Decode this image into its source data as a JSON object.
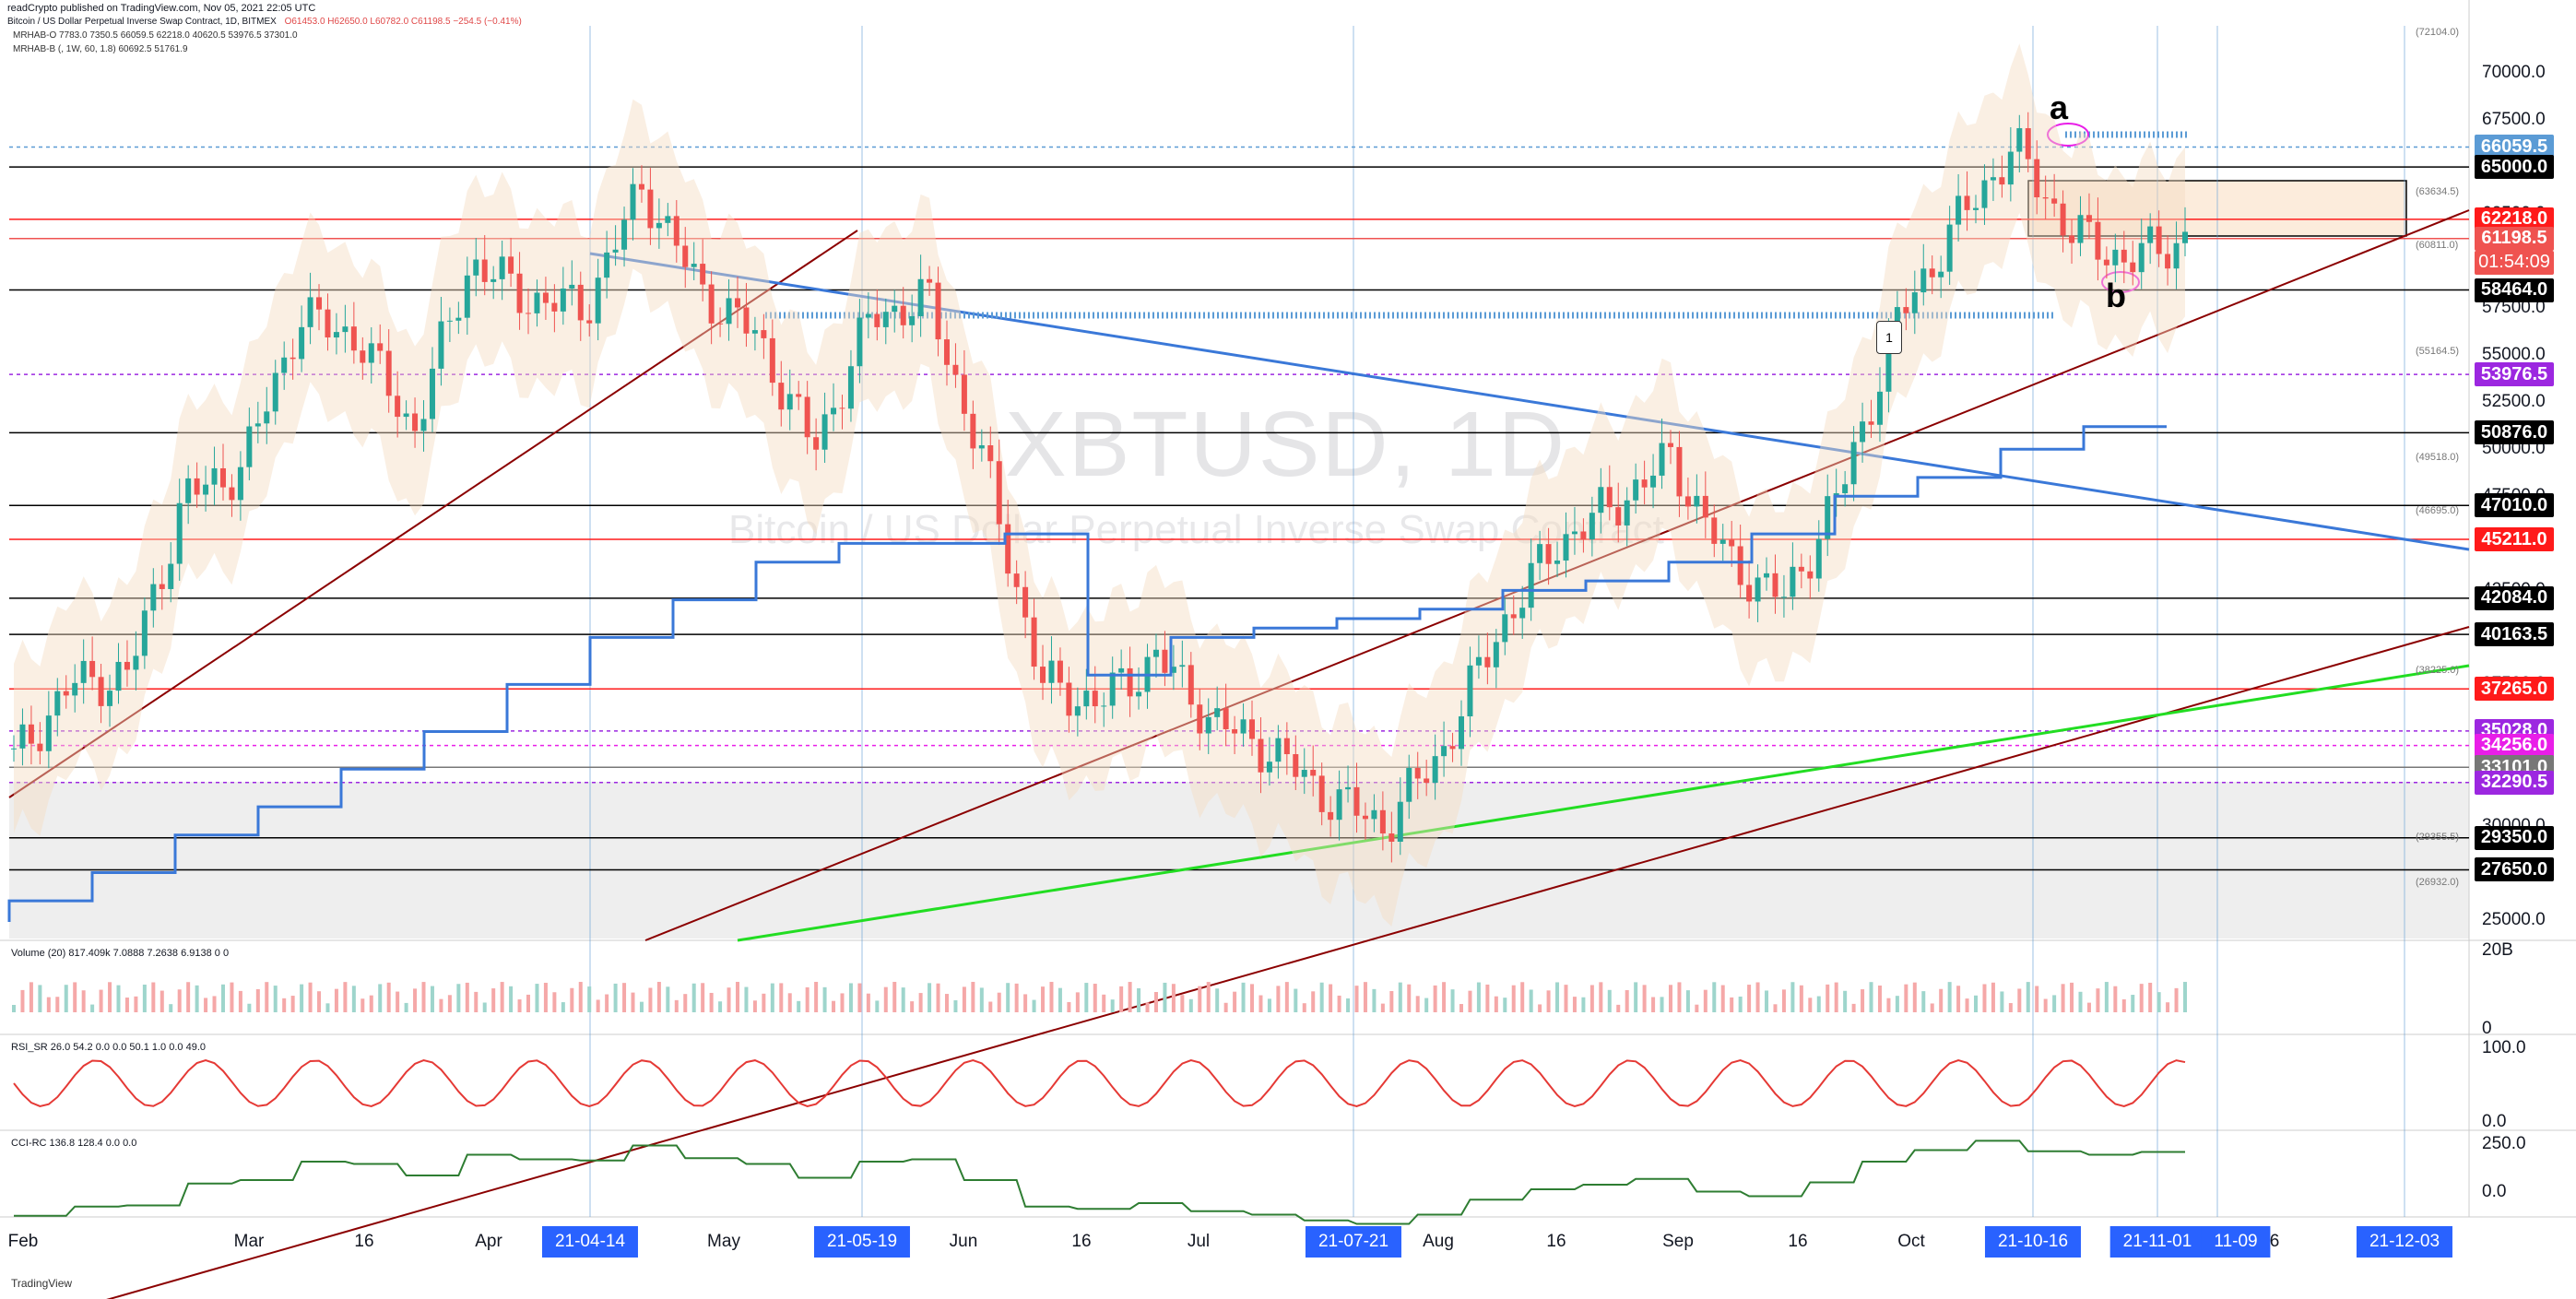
{
  "header": {
    "published": "readCrypto published on TradingView.com, Nov 05, 2021 22:05 UTC",
    "symbol_line": "Bitcoin / US Dollar Perpetual Inverse Swap Contract, 1D, BITMEX",
    "ohlc": "O61453.0  H62650.0  L60782.0  C61198.5  −254.5 (−0.41%)",
    "ind1": "MRHAB-O  7783.0  7350.5  66059.5  62218.0  40620.5  53976.5  37301.0",
    "ind2": "MRHAB-B  (, 1W, 60, 1.8)  60692.5  51761.9"
  },
  "watermark": {
    "ticker": "XBTUSD, 1D",
    "name": "Bitcoin / US Dollar Perpetual Inverse Swap Contract"
  },
  "annotations": {
    "a": "a",
    "b": "b",
    "callout": "1"
  },
  "footer": "TradingView",
  "chart_data": {
    "type": "candlestick",
    "price_axis": {
      "ylim": [
        24000,
        72500
      ],
      "ticks": [
        "70000.0",
        "67500.0",
        "65000.0",
        "62500.0",
        "60000.0",
        "57500.0",
        "55000.0",
        "52500.0",
        "50000.0",
        "47500.0",
        "45000.0",
        "42500.0",
        "40000.0",
        "37500.0",
        "35000.0",
        "32500.0",
        "30000.0",
        "27500.0",
        "25000.0"
      ],
      "tick_values": [
        70000,
        67500,
        65000,
        62500,
        60000,
        57500,
        55000,
        52500,
        50000,
        47500,
        45000,
        42500,
        40000,
        37500,
        35000,
        32500,
        30000,
        27500,
        25000
      ]
    },
    "price_labels": [
      {
        "label": "66059.5",
        "value": 66059.5,
        "color": "#5b9bd5"
      },
      {
        "label": "65000.0",
        "value": 65000,
        "color": "#000000"
      },
      {
        "label": "62218.0",
        "value": 62218,
        "color": "#ff1a1a"
      },
      {
        "label": "61198.5",
        "value": 61198.5,
        "color": "#ef5350",
        "sub": "01:54:09"
      },
      {
        "label": "58464.0",
        "value": 58464,
        "color": "#000000"
      },
      {
        "label": "53976.5",
        "value": 53976.5,
        "color": "#9c27e0"
      },
      {
        "label": "50876.0",
        "value": 50876,
        "color": "#000000"
      },
      {
        "label": "47010.0",
        "value": 47010,
        "color": "#000000"
      },
      {
        "label": "45211.0",
        "value": 45211,
        "color": "#ff1a1a"
      },
      {
        "label": "42084.0",
        "value": 42084,
        "color": "#000000"
      },
      {
        "label": "40163.5",
        "value": 40163.5,
        "color": "#000000"
      },
      {
        "label": "37265.0",
        "value": 37265,
        "color": "#ff1a1a"
      },
      {
        "label": "35028.0",
        "value": 35028,
        "color": "#9c27e0"
      },
      {
        "label": "34256.0",
        "value": 34256,
        "color": "#e91ee8"
      },
      {
        "label": "33101.0",
        "value": 33101,
        "color": "#777777"
      },
      {
        "label": "32290.5",
        "value": 32290.5,
        "color": "#9c27e0"
      },
      {
        "label": "29350.0",
        "value": 29350,
        "color": "#000000"
      },
      {
        "label": "27650.0",
        "value": 27650,
        "color": "#000000"
      }
    ],
    "small_level_labels": [
      {
        "label": "(72104.0)",
        "value": 72104
      },
      {
        "label": "(63634.5)",
        "value": 63634.5
      },
      {
        "label": "(60811.0)",
        "value": 60811
      },
      {
        "label": "(55164.5)",
        "value": 55164.5
      },
      {
        "label": "(49518.0)",
        "value": 49518
      },
      {
        "label": "(46695.0)",
        "value": 46695
      },
      {
        "label": "(38225.0)",
        "value": 38225
      },
      {
        "label": "(29355.5)",
        "value": 29355.5
      },
      {
        "label": "(26932.0)",
        "value": 26932
      }
    ],
    "x_axis": {
      "labels": [
        "Feb",
        "Mar",
        "16",
        "Apr",
        "May",
        "Jun",
        "16",
        "Jul",
        "Aug",
        "16",
        "Sep",
        "16",
        "Oct",
        "6"
      ],
      "highlighted": [
        "21-04-14",
        "21-05-19",
        "21-07-21",
        "21-10-16",
        "21-11-01",
        "11-09",
        "21-12-03"
      ]
    },
    "series": [
      {
        "name": "XBTUSD",
        "values_close_approx": [
          33500,
          37500,
          38000,
          47500,
          49000,
          57000,
          56000,
          51000,
          60000,
          58000,
          57500,
          64000,
          58500,
          56000,
          50000,
          57000,
          58000,
          49000,
          37500,
          36500,
          39000,
          35500,
          34000,
          31500,
          30000,
          34000,
          40500,
          45000,
          47000,
          49500,
          44000,
          42000,
          48000,
          57000,
          62000,
          66059.5,
          61500,
          60000,
          61198.5
        ]
      }
    ],
    "key_lows_highs": {
      "a": 66059.5,
      "b": 58464.0
    },
    "panels": [
      {
        "name": "Volume (20)",
        "title": "Volume (20)  817.409k  7.0888  7.2638  6.9138  0  0",
        "axis": [
          "20B",
          "0"
        ]
      },
      {
        "name": "RSI_SR",
        "title": "RSI_SR  26.0  54.2  0.0  0.0  50.1  1.0  0.0  49.0",
        "axis": [
          "100.0",
          "0.0"
        ]
      },
      {
        "name": "CCI-RC",
        "title": "CCI-RC  136.8  128.4  0.0  0.0",
        "axis": [
          "250.0",
          "0.0"
        ]
      }
    ]
  }
}
